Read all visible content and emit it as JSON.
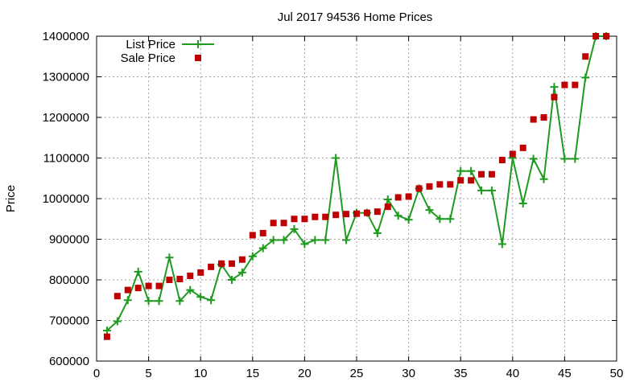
{
  "chart_data": {
    "type": "line",
    "title": "Jul 2017 94536 Home Prices",
    "xlabel": "",
    "ylabel": "Price",
    "xlim": [
      0,
      50
    ],
    "ylim": [
      600000,
      1400000
    ],
    "xticks": [
      0,
      5,
      10,
      15,
      20,
      25,
      30,
      35,
      40,
      45,
      50
    ],
    "yticks": [
      600000,
      700000,
      800000,
      900000,
      1000000,
      1100000,
      1200000,
      1300000,
      1400000
    ],
    "grid": true,
    "legend": "top-left",
    "series": [
      {
        "name": "List Price",
        "style": "line-points",
        "marker": "plus",
        "color": "#1e9b1e",
        "x": [
          1,
          2,
          3,
          4,
          5,
          6,
          7,
          8,
          9,
          10,
          11,
          12,
          13,
          14,
          15,
          16,
          17,
          18,
          19,
          20,
          21,
          22,
          23,
          24,
          25,
          26,
          27,
          28,
          29,
          30,
          31,
          32,
          33,
          34,
          35,
          36,
          37,
          38,
          39,
          40,
          41,
          42,
          43,
          44,
          45,
          46,
          47,
          48,
          49
        ],
        "y": [
          675000,
          698000,
          750000,
          820000,
          748000,
          748000,
          855000,
          748000,
          775000,
          758000,
          750000,
          838000,
          800000,
          818000,
          858000,
          878000,
          898000,
          898000,
          925000,
          888000,
          898000,
          898000,
          1100000,
          898000,
          965000,
          965000,
          915000,
          998000,
          958000,
          948000,
          1025000,
          972000,
          950000,
          950000,
          1068000,
          1068000,
          1020000,
          1020000,
          888000,
          1100000,
          988000,
          1098000,
          1048000,
          1275000,
          1098000,
          1098000,
          1298000,
          1400000,
          1400000
        ]
      },
      {
        "name": "Sale Price",
        "style": "points",
        "marker": "square",
        "color": "#c00000",
        "x": [
          1,
          2,
          3,
          4,
          5,
          6,
          7,
          8,
          9,
          10,
          11,
          12,
          13,
          14,
          15,
          16,
          17,
          18,
          19,
          20,
          21,
          22,
          23,
          24,
          25,
          26,
          27,
          28,
          29,
          30,
          31,
          32,
          33,
          34,
          35,
          36,
          37,
          38,
          39,
          40,
          41,
          42,
          43,
          44,
          45,
          46,
          47,
          48,
          49
        ],
        "y": [
          660000,
          760000,
          775000,
          780000,
          785000,
          785000,
          800000,
          802000,
          810000,
          818000,
          832000,
          840000,
          840000,
          850000,
          910000,
          915000,
          940000,
          940000,
          950000,
          950000,
          955000,
          955000,
          960000,
          962000,
          963000,
          965000,
          968000,
          980000,
          1003000,
          1005000,
          1025000,
          1030000,
          1035000,
          1035000,
          1045000,
          1045000,
          1060000,
          1060000,
          1095000,
          1110000,
          1125000,
          1195000,
          1200000,
          1250000,
          1280000,
          1280000,
          1350000,
          1400000,
          1400000
        ]
      }
    ]
  }
}
